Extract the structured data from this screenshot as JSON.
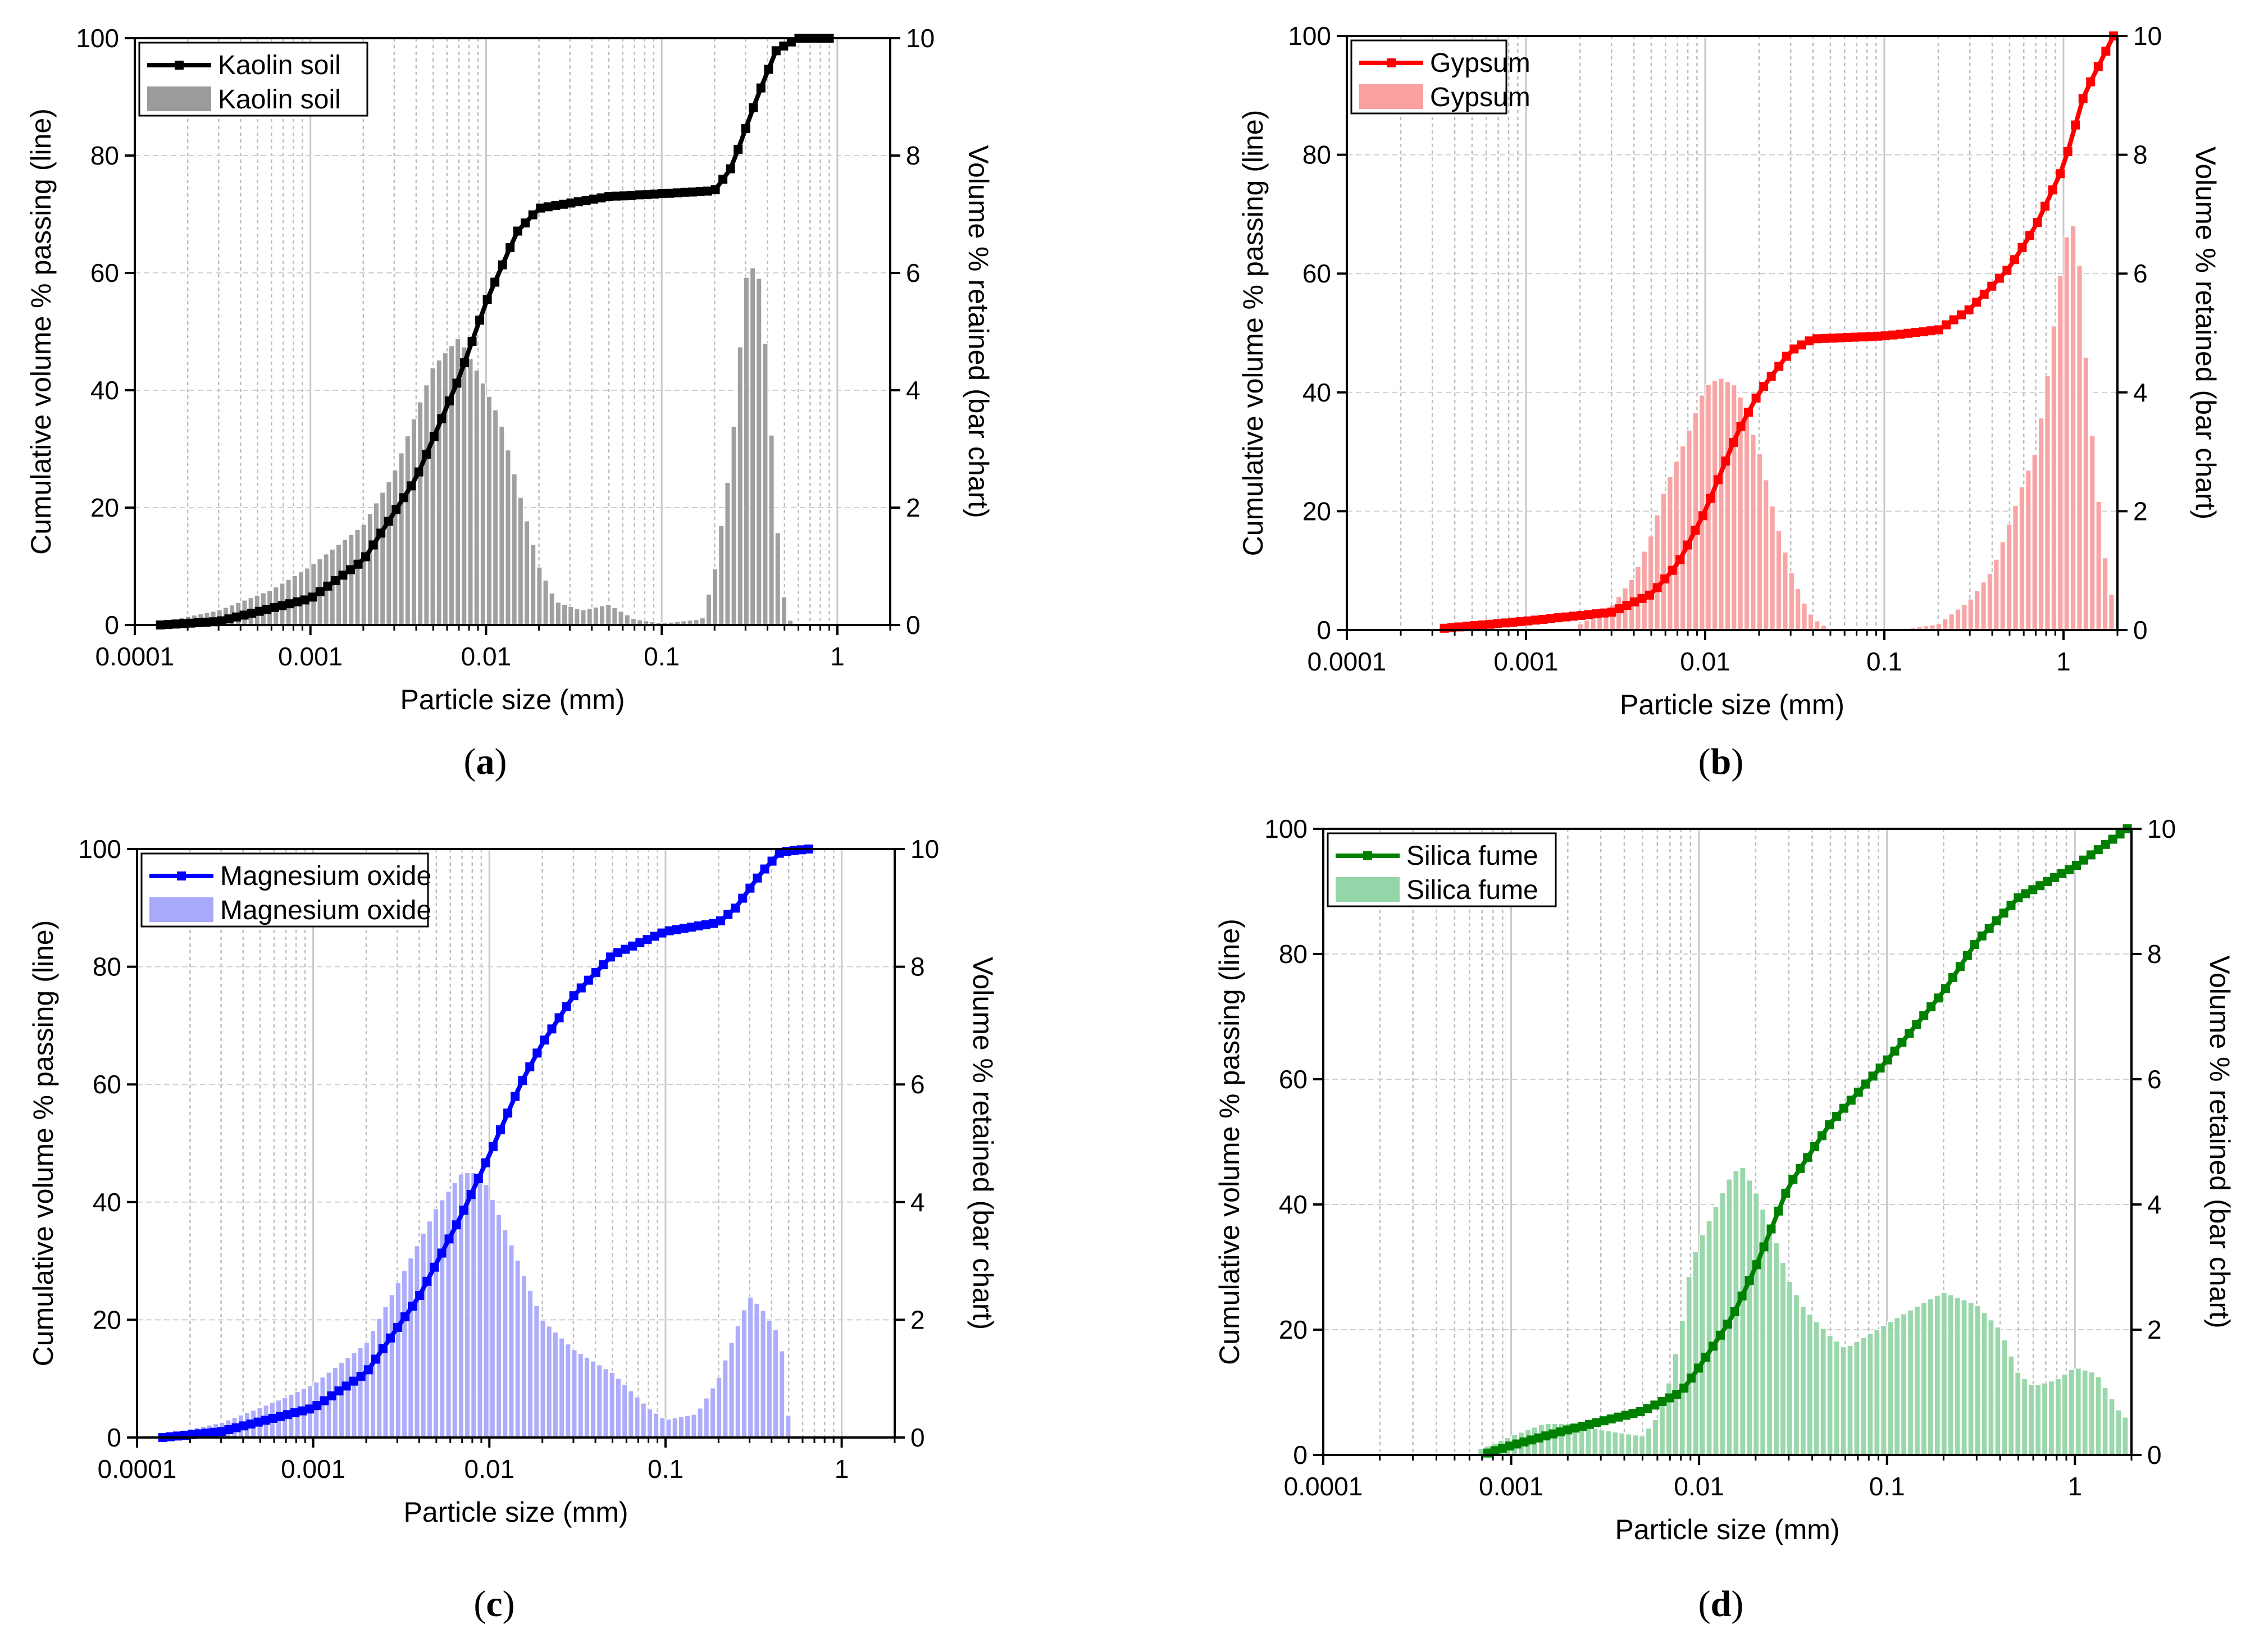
{
  "chart_data": [
    {
      "id": "a",
      "type": "bar+line",
      "caption": "a",
      "xlabel": "Particle size (mm)",
      "ylabel_left": "Cumulative volume % passing (line)",
      "ylabel_right": "Volume % retained (bar chart)",
      "x_scale": "log",
      "xlim": [
        0.0001,
        2
      ],
      "x_ticks": [
        "0.0001",
        "0.001",
        "0.01",
        "0.1",
        "1"
      ],
      "ylim_left": [
        0,
        100
      ],
      "ylim_right": [
        0,
        10
      ],
      "yticks_left": [
        "0",
        "20",
        "40",
        "60",
        "80",
        "100"
      ],
      "yticks_right": [
        "0",
        "2",
        "4",
        "6",
        "8",
        "10"
      ],
      "grid": true,
      "legend_position": "top-left",
      "line_color": "#000000",
      "bar_color": "#9b9b9b",
      "line_series": {
        "name": "Kaolin soil",
        "x_range": [
          0.00014,
          0.9
        ],
        "points": [
          [
            0.00014,
            0
          ],
          [
            0.0003,
            0.6
          ],
          [
            0.001,
            4.5
          ],
          [
            0.002,
            11
          ],
          [
            0.004,
            25
          ],
          [
            0.007,
            42
          ],
          [
            0.01,
            55
          ],
          [
            0.015,
            67
          ],
          [
            0.02,
            71
          ],
          [
            0.05,
            73
          ],
          [
            0.1,
            73.5
          ],
          [
            0.2,
            74
          ],
          [
            0.25,
            78
          ],
          [
            0.35,
            90
          ],
          [
            0.45,
            98
          ],
          [
            0.6,
            100
          ],
          [
            0.9,
            100
          ]
        ]
      },
      "bar_series": {
        "name": "Kaolin soil",
        "points": [
          [
            0.00014,
            0.05
          ],
          [
            0.0003,
            0.25
          ],
          [
            0.0006,
            0.6
          ],
          [
            0.001,
            1.0
          ],
          [
            0.002,
            1.7
          ],
          [
            0.003,
            2.6
          ],
          [
            0.005,
            4.4
          ],
          [
            0.007,
            4.9
          ],
          [
            0.009,
            4.3
          ],
          [
            0.012,
            3.5
          ],
          [
            0.015,
            2.4
          ],
          [
            0.02,
            1.0
          ],
          [
            0.025,
            0.4
          ],
          [
            0.035,
            0.25
          ],
          [
            0.05,
            0.35
          ],
          [
            0.07,
            0.1
          ],
          [
            0.1,
            0.03
          ],
          [
            0.17,
            0.1
          ],
          [
            0.2,
            0.9
          ],
          [
            0.25,
            2.9
          ],
          [
            0.3,
            5.9
          ],
          [
            0.35,
            6.2
          ],
          [
            0.4,
            4.4
          ],
          [
            0.45,
            1.8
          ],
          [
            0.5,
            0.4
          ],
          [
            0.55,
            0
          ]
        ]
      }
    },
    {
      "id": "b",
      "type": "bar+line",
      "caption": "b",
      "xlabel": "Particle size (mm)",
      "ylabel_left": "Cumulative volume % passing (line)",
      "ylabel_right": "Volume % retained (bar chart)",
      "x_scale": "log",
      "xlim": [
        0.0001,
        2
      ],
      "x_ticks": [
        "0.0001",
        "0.001",
        "0.01",
        "0.1",
        "1"
      ],
      "ylim_left": [
        0,
        100
      ],
      "ylim_right": [
        0,
        10
      ],
      "yticks_left": [
        "0",
        "20",
        "40",
        "60",
        "80",
        "100"
      ],
      "yticks_right": [
        "0",
        "2",
        "4",
        "6",
        "8",
        "10"
      ],
      "grid": true,
      "legend_position": "top-left",
      "line_color": "#ff0000",
      "bar_color": "#f9a0a0",
      "line_series": {
        "name": "Gypsum",
        "x_range": [
          0.00035,
          1.9
        ],
        "points": [
          [
            0.00035,
            0.3
          ],
          [
            0.001,
            1.5
          ],
          [
            0.003,
            3
          ],
          [
            0.005,
            6
          ],
          [
            0.007,
            11
          ],
          [
            0.01,
            20
          ],
          [
            0.015,
            33
          ],
          [
            0.02,
            40
          ],
          [
            0.03,
            47
          ],
          [
            0.04,
            49
          ],
          [
            0.1,
            49.5
          ],
          [
            0.2,
            50.5
          ],
          [
            0.3,
            54
          ],
          [
            0.5,
            61
          ],
          [
            0.7,
            68
          ],
          [
            1,
            78
          ],
          [
            1.3,
            90
          ],
          [
            1.9,
            100
          ]
        ]
      },
      "bar_series": {
        "name": "Gypsum",
        "points": [
          [
            0.002,
            0.1
          ],
          [
            0.003,
            0.4
          ],
          [
            0.004,
            0.9
          ],
          [
            0.005,
            1.6
          ],
          [
            0.006,
            2.4
          ],
          [
            0.008,
            3.3
          ],
          [
            0.01,
            4.1
          ],
          [
            0.012,
            4.25
          ],
          [
            0.015,
            4.1
          ],
          [
            0.02,
            3.0
          ],
          [
            0.025,
            1.8
          ],
          [
            0.03,
            1.0
          ],
          [
            0.035,
            0.5
          ],
          [
            0.04,
            0.2
          ],
          [
            0.05,
            0
          ],
          [
            0.12,
            0
          ],
          [
            0.2,
            0.1
          ],
          [
            0.3,
            0.5
          ],
          [
            0.4,
            1.0
          ],
          [
            0.5,
            1.8
          ],
          [
            0.6,
            2.5
          ],
          [
            0.7,
            3.0
          ],
          [
            0.8,
            4.1
          ],
          [
            0.9,
            5.3
          ],
          [
            1.0,
            6.4
          ],
          [
            1.1,
            6.9
          ],
          [
            1.2,
            6.6
          ],
          [
            1.3,
            5.0
          ],
          [
            1.5,
            2.7
          ],
          [
            1.8,
            0.6
          ]
        ]
      }
    },
    {
      "id": "c",
      "type": "bar+line",
      "caption": "c",
      "xlabel": "Particle size (mm)",
      "ylabel_left": "Cumulative volume % passing (line)",
      "ylabel_right": "Volume % retained (bar chart)",
      "x_scale": "log",
      "xlim": [
        0.0001,
        2
      ],
      "x_ticks": [
        "0.0001",
        "0.001",
        "0.01",
        "0.1",
        "1"
      ],
      "ylim_left": [
        0,
        100
      ],
      "ylim_right": [
        0,
        10
      ],
      "yticks_left": [
        "0",
        "20",
        "40",
        "60",
        "80",
        "100"
      ],
      "yticks_right": [
        "0",
        "2",
        "4",
        "6",
        "8",
        "10"
      ],
      "grid": true,
      "legend_position": "top-left",
      "line_color": "#0000ff",
      "bar_color": "#a9a9fb",
      "line_series": {
        "name": "Magnesium oxide",
        "x_range": [
          0.00014,
          0.65
        ],
        "points": [
          [
            0.00014,
            0
          ],
          [
            0.0003,
            1
          ],
          [
            0.001,
            5
          ],
          [
            0.002,
            11
          ],
          [
            0.004,
            24
          ],
          [
            0.007,
            38
          ],
          [
            0.01,
            48
          ],
          [
            0.015,
            60
          ],
          [
            0.02,
            67
          ],
          [
            0.03,
            75
          ],
          [
            0.05,
            82
          ],
          [
            0.1,
            86
          ],
          [
            0.2,
            87.5
          ],
          [
            0.25,
            90
          ],
          [
            0.35,
            96
          ],
          [
            0.45,
            99.5
          ],
          [
            0.65,
            100
          ]
        ]
      },
      "bar_series": {
        "name": "Magnesium oxide",
        "points": [
          [
            0.00014,
            0.05
          ],
          [
            0.0003,
            0.25
          ],
          [
            0.0006,
            0.6
          ],
          [
            0.001,
            0.9
          ],
          [
            0.002,
            1.6
          ],
          [
            0.003,
            2.6
          ],
          [
            0.005,
            3.9
          ],
          [
            0.007,
            4.5
          ],
          [
            0.009,
            4.5
          ],
          [
            0.012,
            3.6
          ],
          [
            0.02,
            2.0
          ],
          [
            0.03,
            1.5
          ],
          [
            0.05,
            1.1
          ],
          [
            0.08,
            0.5
          ],
          [
            0.1,
            0.3
          ],
          [
            0.15,
            0.4
          ],
          [
            0.2,
            1.0
          ],
          [
            0.25,
            1.8
          ],
          [
            0.3,
            2.4
          ],
          [
            0.35,
            2.2
          ],
          [
            0.45,
            1.7
          ],
          [
            0.5,
            0.3
          ]
        ]
      }
    },
    {
      "id": "d",
      "type": "bar+line",
      "caption": "d",
      "xlabel": "Particle size (mm)",
      "ylabel_left": "Cumulative volume % passing (line)",
      "ylabel_right": "Volume % retained (bar chart)",
      "x_scale": "log",
      "xlim": [
        0.0001,
        2
      ],
      "x_ticks": [
        "0.0001",
        "0.001",
        "0.01",
        "0.1",
        "1"
      ],
      "ylim_left": [
        0,
        100
      ],
      "ylim_right": [
        0,
        10
      ],
      "yticks_left": [
        "0",
        "20",
        "40",
        "60",
        "80",
        "100"
      ],
      "yticks_right": [
        "0",
        "2",
        "4",
        "6",
        "8",
        "10"
      ],
      "grid": true,
      "legend_position": "top-left",
      "line_color": "#008000",
      "bar_color": "#95d6a8",
      "line_series": {
        "name": "Silica fume",
        "x_range": [
          0.00075,
          1.9
        ],
        "points": [
          [
            0.00075,
            0.3
          ],
          [
            0.001,
            1.5
          ],
          [
            0.002,
            4
          ],
          [
            0.005,
            7
          ],
          [
            0.008,
            10
          ],
          [
            0.01,
            14
          ],
          [
            0.015,
            22
          ],
          [
            0.02,
            30
          ],
          [
            0.03,
            43
          ],
          [
            0.05,
            53
          ],
          [
            0.1,
            63
          ],
          [
            0.2,
            74
          ],
          [
            0.3,
            82
          ],
          [
            0.5,
            89
          ],
          [
            1,
            94
          ],
          [
            1.9,
            100
          ]
        ]
      },
      "bar_series": {
        "name": "Silica fume",
        "points": [
          [
            0.0007,
            0.1
          ],
          [
            0.001,
            0.3
          ],
          [
            0.0015,
            0.5
          ],
          [
            0.002,
            0.5
          ],
          [
            0.003,
            0.4
          ],
          [
            0.005,
            0.3
          ],
          [
            0.006,
            0.6
          ],
          [
            0.007,
            1.2
          ],
          [
            0.008,
            2.0
          ],
          [
            0.009,
            3.0
          ],
          [
            0.01,
            3.4
          ],
          [
            0.012,
            3.9
          ],
          [
            0.015,
            4.5
          ],
          [
            0.017,
            4.6
          ],
          [
            0.02,
            4.2
          ],
          [
            0.025,
            3.5
          ],
          [
            0.03,
            2.8
          ],
          [
            0.035,
            2.4
          ],
          [
            0.04,
            2.2
          ],
          [
            0.05,
            1.9
          ],
          [
            0.06,
            1.7
          ],
          [
            0.1,
            2.1
          ],
          [
            0.15,
            2.4
          ],
          [
            0.2,
            2.6
          ],
          [
            0.3,
            2.4
          ],
          [
            0.4,
            2.0
          ],
          [
            0.5,
            1.3
          ],
          [
            0.6,
            1.1
          ],
          [
            0.8,
            1.2
          ],
          [
            1.0,
            1.4
          ],
          [
            1.3,
            1.3
          ],
          [
            1.5,
            1.0
          ],
          [
            1.8,
            0.6
          ]
        ]
      }
    }
  ]
}
